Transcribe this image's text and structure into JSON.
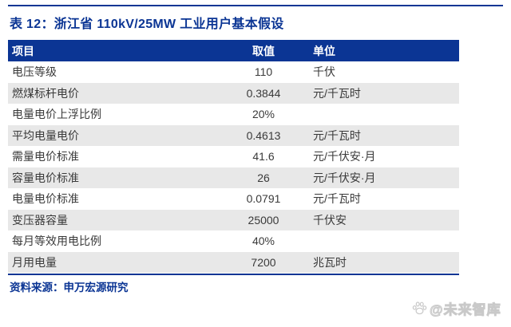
{
  "page": {
    "title": "表 12：浙江省 110kV/25MW 工业用户基本假设",
    "source": "资料来源：申万宏源研究"
  },
  "table": {
    "headers": {
      "item": "项目",
      "value": "取值",
      "unit": "单位"
    },
    "rows": [
      {
        "item": "电压等级",
        "value": "110",
        "unit": "千伏"
      },
      {
        "item": "燃煤标杆电价",
        "value": "0.3844",
        "unit": "元/千瓦时"
      },
      {
        "item": "电量电价上浮比例",
        "value": "20%",
        "unit": ""
      },
      {
        "item": "平均电量电价",
        "value": "0.4613",
        "unit": "元/千瓦时"
      },
      {
        "item": "需量电价标准",
        "value": "41.6",
        "unit": "元/千伏安·月"
      },
      {
        "item": "容量电价标准",
        "value": "26",
        "unit": "元/千伏安·月"
      },
      {
        "item": "电量电价标准",
        "value": "0.0791",
        "unit": "元/千瓦时"
      },
      {
        "item": "变压器容量",
        "value": "25000",
        "unit": "千伏安"
      },
      {
        "item": "每月等效用电比例",
        "value": "40%",
        "unit": ""
      },
      {
        "item": "月用电量",
        "value": "7200",
        "unit": "兆瓦时"
      }
    ]
  },
  "watermark": {
    "text": "@未来智库",
    "icon": "paw-icon"
  },
  "colors": {
    "accent_blue": "#0b3594",
    "stripe_gray": "#e8e8e8",
    "body_text": "#3a3a3a",
    "watermark_gray": "#c9c9c9"
  }
}
